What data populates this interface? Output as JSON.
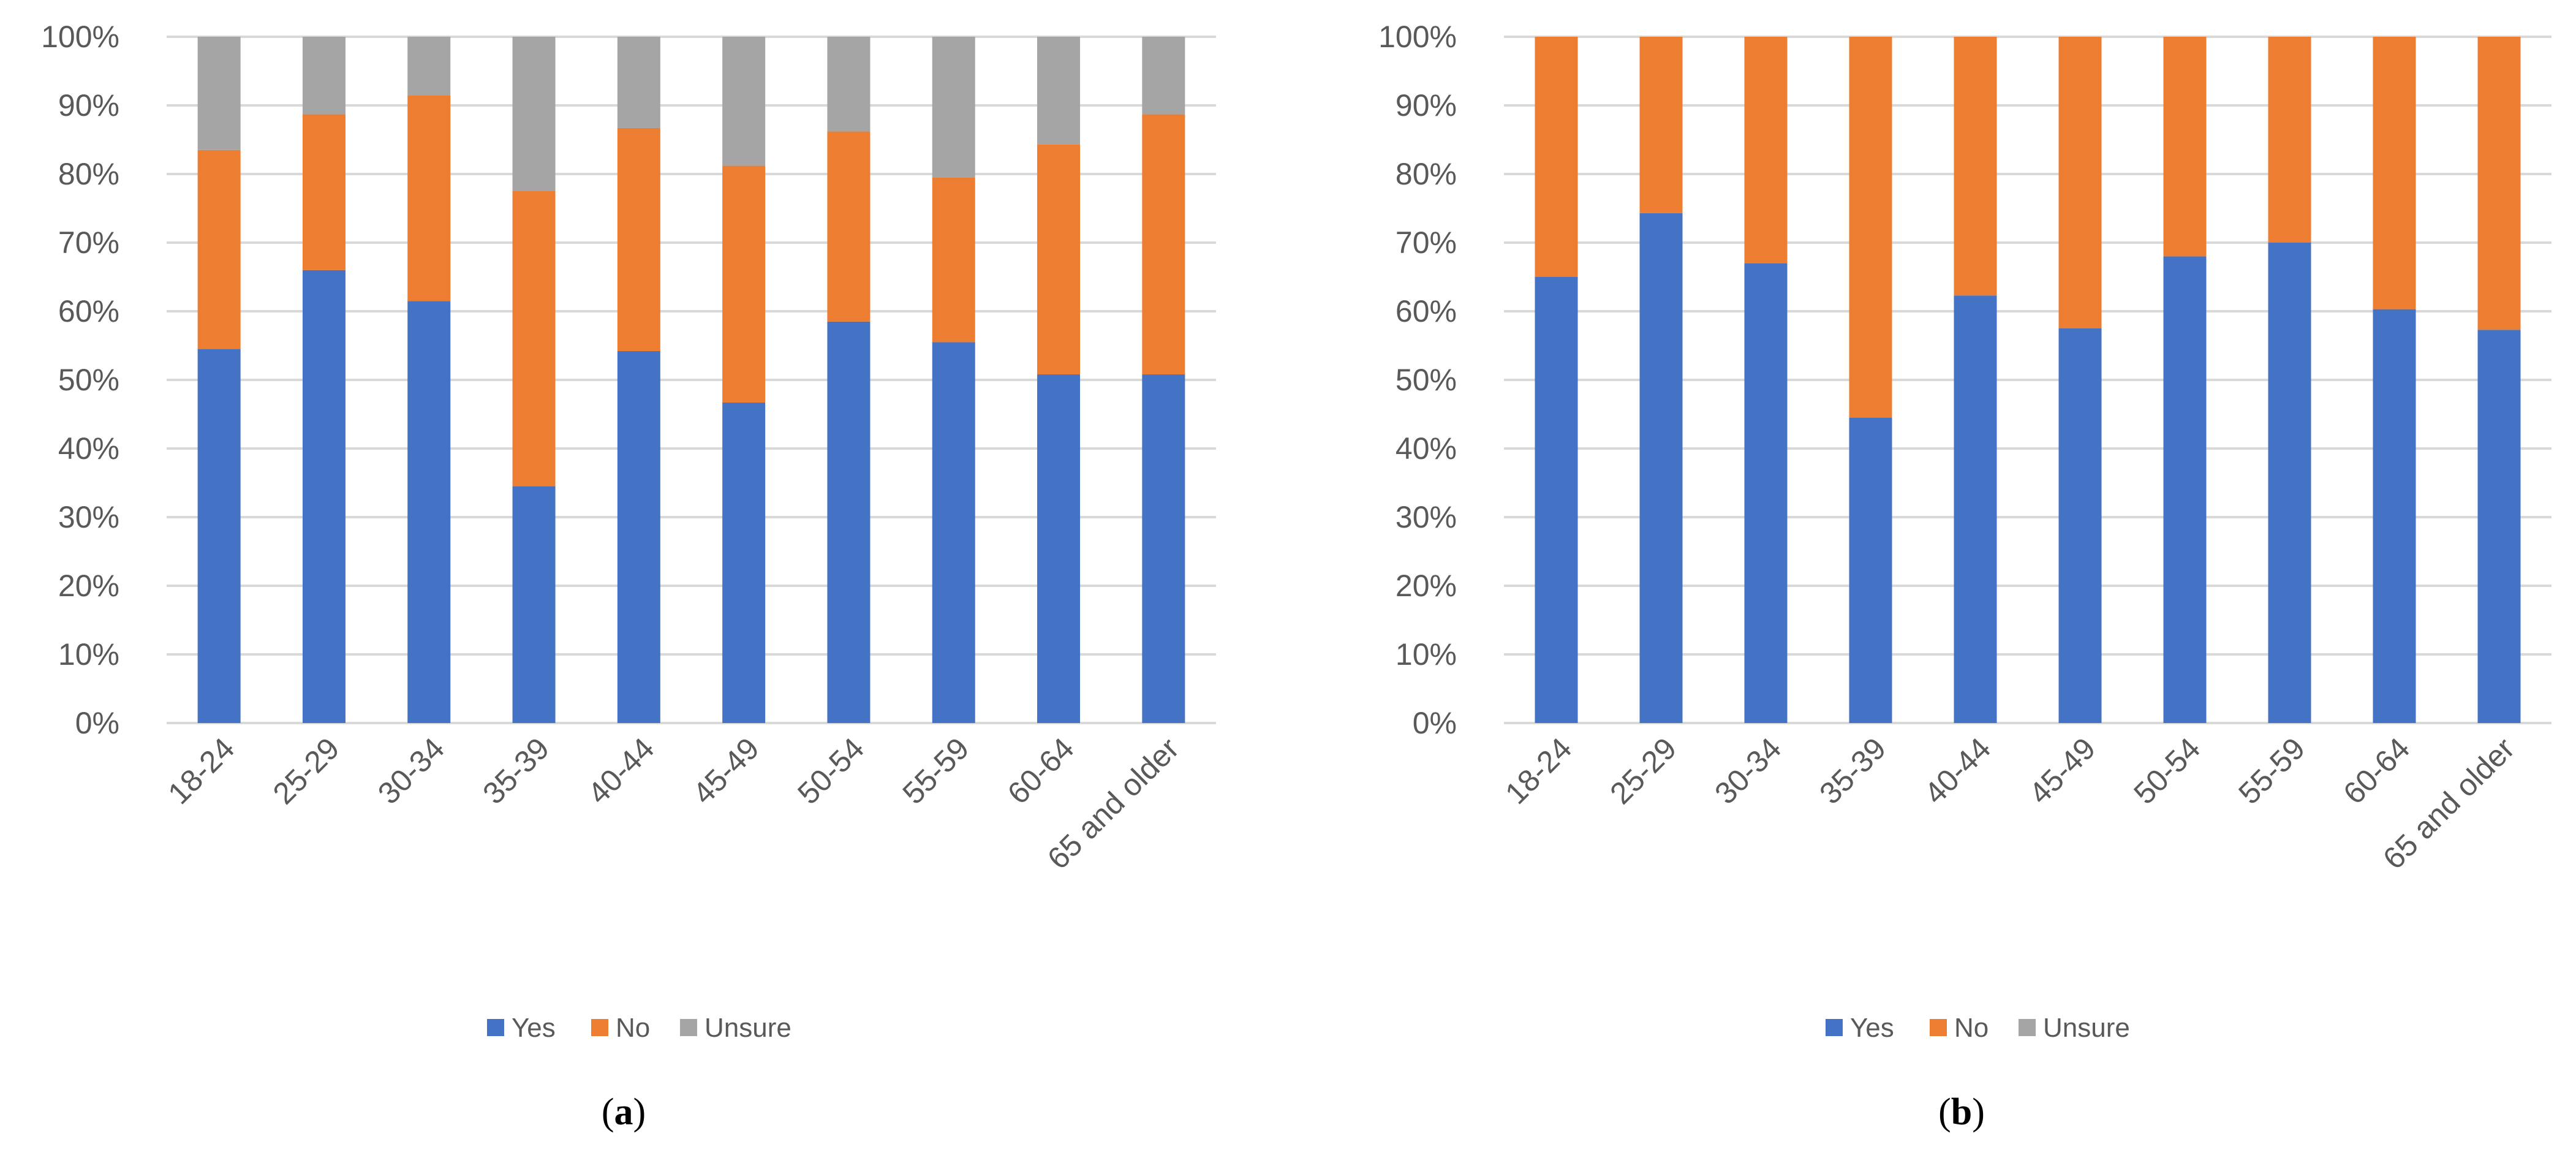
{
  "chart_data": [
    {
      "type": "bar",
      "stacked": true,
      "caption": "a",
      "categories": [
        "18-24",
        "25-29",
        "30-34",
        "35-39",
        "40-44",
        "45-49",
        "50-54",
        "55-59",
        "60-64",
        "65 and older"
      ],
      "series": [
        {
          "name": "Yes",
          "color": "#4472C4",
          "values": [
            54.5,
            66,
            61.5,
            34.5,
            54.2,
            46.7,
            58.5,
            55.5,
            50.8,
            50.8
          ]
        },
        {
          "name": "No",
          "color": "#ED7D31",
          "values": [
            29,
            22.7,
            30,
            43,
            32.5,
            34.5,
            27.7,
            24,
            33.5,
            37.9
          ]
        },
        {
          "name": "Unsure",
          "color": "#A5A5A5",
          "values": [
            16.5,
            11.3,
            8.5,
            22.5,
            13.3,
            18.8,
            13.8,
            20.5,
            15.7,
            11.3
          ]
        }
      ],
      "ylim": [
        0,
        100
      ],
      "yticks": [
        "0%",
        "10%",
        "20%",
        "30%",
        "40%",
        "50%",
        "60%",
        "70%",
        "80%",
        "90%",
        "100%"
      ],
      "grid": true,
      "legend": "bottom"
    },
    {
      "type": "bar",
      "stacked": true,
      "caption": "b",
      "categories": [
        "18-24",
        "25-29",
        "30-34",
        "35-39",
        "40-44",
        "45-49",
        "50-54",
        "55-59",
        "60-64",
        "65 and older"
      ],
      "series": [
        {
          "name": "Yes",
          "color": "#4472C4",
          "values": [
            65,
            74.3,
            67,
            44.5,
            62.3,
            57.5,
            68,
            70,
            60.3,
            57.3
          ]
        },
        {
          "name": "No",
          "color": "#ED7D31",
          "values": [
            35,
            25.7,
            33,
            55.5,
            37.7,
            42.5,
            32,
            30,
            39.7,
            42.7
          ]
        },
        {
          "name": "Unsure",
          "color": "#A5A5A5",
          "values": [
            0,
            0,
            0,
            0,
            0,
            0,
            0,
            0,
            0,
            0
          ]
        }
      ],
      "ylim": [
        0,
        100
      ],
      "yticks": [
        "0%",
        "10%",
        "20%",
        "30%",
        "40%",
        "50%",
        "60%",
        "70%",
        "80%",
        "90%",
        "100%"
      ],
      "grid": true,
      "legend": "bottom"
    }
  ]
}
